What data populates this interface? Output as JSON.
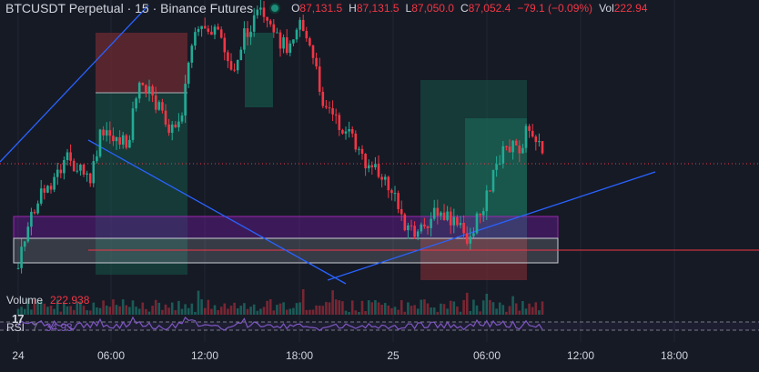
{
  "header": {
    "symbol_title": "BTCUSDT Perpetual · 15 · Binance Futures",
    "ohlc": [
      {
        "label": "O",
        "value": "87,131.5"
      },
      {
        "label": "H",
        "value": "87,131.5"
      },
      {
        "label": "L",
        "value": "87,050.0"
      },
      {
        "label": "C",
        "value": "87,052.4"
      }
    ],
    "change": "−79.1 (−0.09%)",
    "volume_label": "Vol",
    "volume_value": "222.94"
  },
  "volume_pane": {
    "label": "Volume",
    "value": "222.938"
  },
  "rsi_pane": {
    "label": "RSI",
    "period": "7",
    "value": "34.93"
  },
  "logo_text": "17",
  "x_axis": {
    "ticks": [
      {
        "label": "24"
      },
      {
        "label": "06:00"
      },
      {
        "label": "12:00"
      },
      {
        "label": "18:00"
      },
      {
        "label": "25"
      },
      {
        "label": "06:00"
      },
      {
        "label": "12:00"
      },
      {
        "label": "18:00"
      }
    ]
  },
  "colors": {
    "background": "#161a25",
    "up": "#22ab94",
    "down": "#f23645",
    "rsi": "#7e57c2",
    "trendline": "#2962ff",
    "zone_purple": "#9c27b0"
  },
  "chart_data": {
    "type": "candlestick",
    "symbol": "BTCUSDT Perpetual",
    "interval": "15",
    "last": {
      "open": 87131.5,
      "high": 87131.5,
      "low": 87050.0,
      "close": 87052.4,
      "change": -79.1,
      "change_pct": -0.09,
      "volume": 222.94
    },
    "x_ticks": [
      "24",
      "06:00",
      "12:00",
      "18:00",
      "25",
      "06:00",
      "12:00",
      "18:00"
    ],
    "volume_last": 222.938,
    "rsi": {
      "period": 7,
      "value": 34.93
    }
  }
}
